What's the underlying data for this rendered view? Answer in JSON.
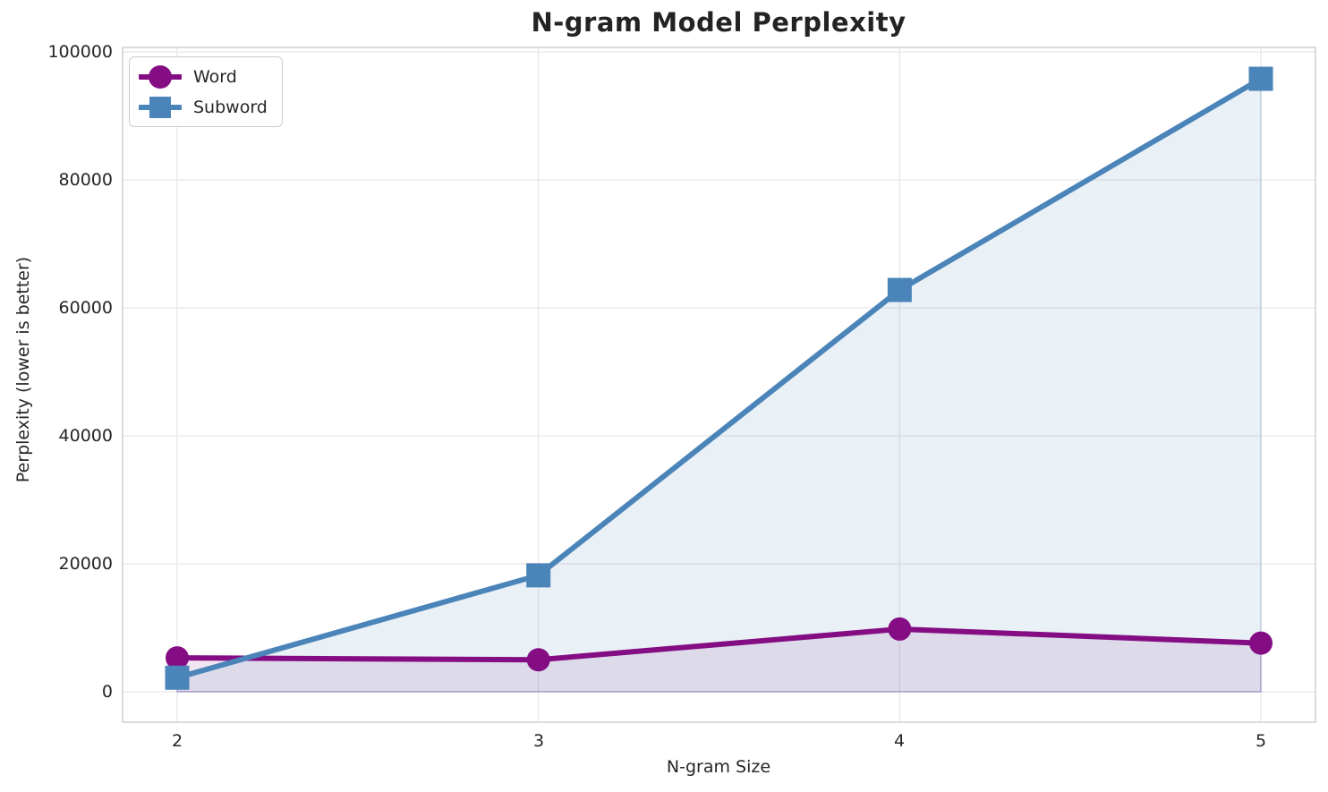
{
  "chart_data": {
    "type": "line",
    "title": "N-gram Model Perplexity",
    "xlabel": "N-gram Size",
    "ylabel": "Perplexity (lower is better)",
    "x": [
      2,
      3,
      4,
      5
    ],
    "x_tick_labels": [
      "2",
      "3",
      "4",
      "5"
    ],
    "y_ticks": [
      0,
      20000,
      40000,
      60000,
      80000,
      100000
    ],
    "y_tick_labels": [
      "0",
      "20000",
      "40000",
      "60000",
      "80000",
      "100000"
    ],
    "xlim": [
      1.85,
      5.15
    ],
    "ylim": [
      -4800,
      100800
    ],
    "grid": true,
    "legend_position": "upper left",
    "area_fill_to_zero": true,
    "series": [
      {
        "name": "Word",
        "marker": "circle",
        "color": "#840d84",
        "fill_opacity": 0.1,
        "values": [
          5300,
          5000,
          9800,
          7600
        ]
      },
      {
        "name": "Subword",
        "marker": "square",
        "color": "#4a84b8",
        "fill_opacity": 0.12,
        "values": [
          2200,
          18200,
          62800,
          95800
        ]
      }
    ],
    "colors": {
      "background": "#ffffff",
      "grid": "#e8e8e8",
      "spine": "#cccccc",
      "text": "#262626"
    }
  }
}
